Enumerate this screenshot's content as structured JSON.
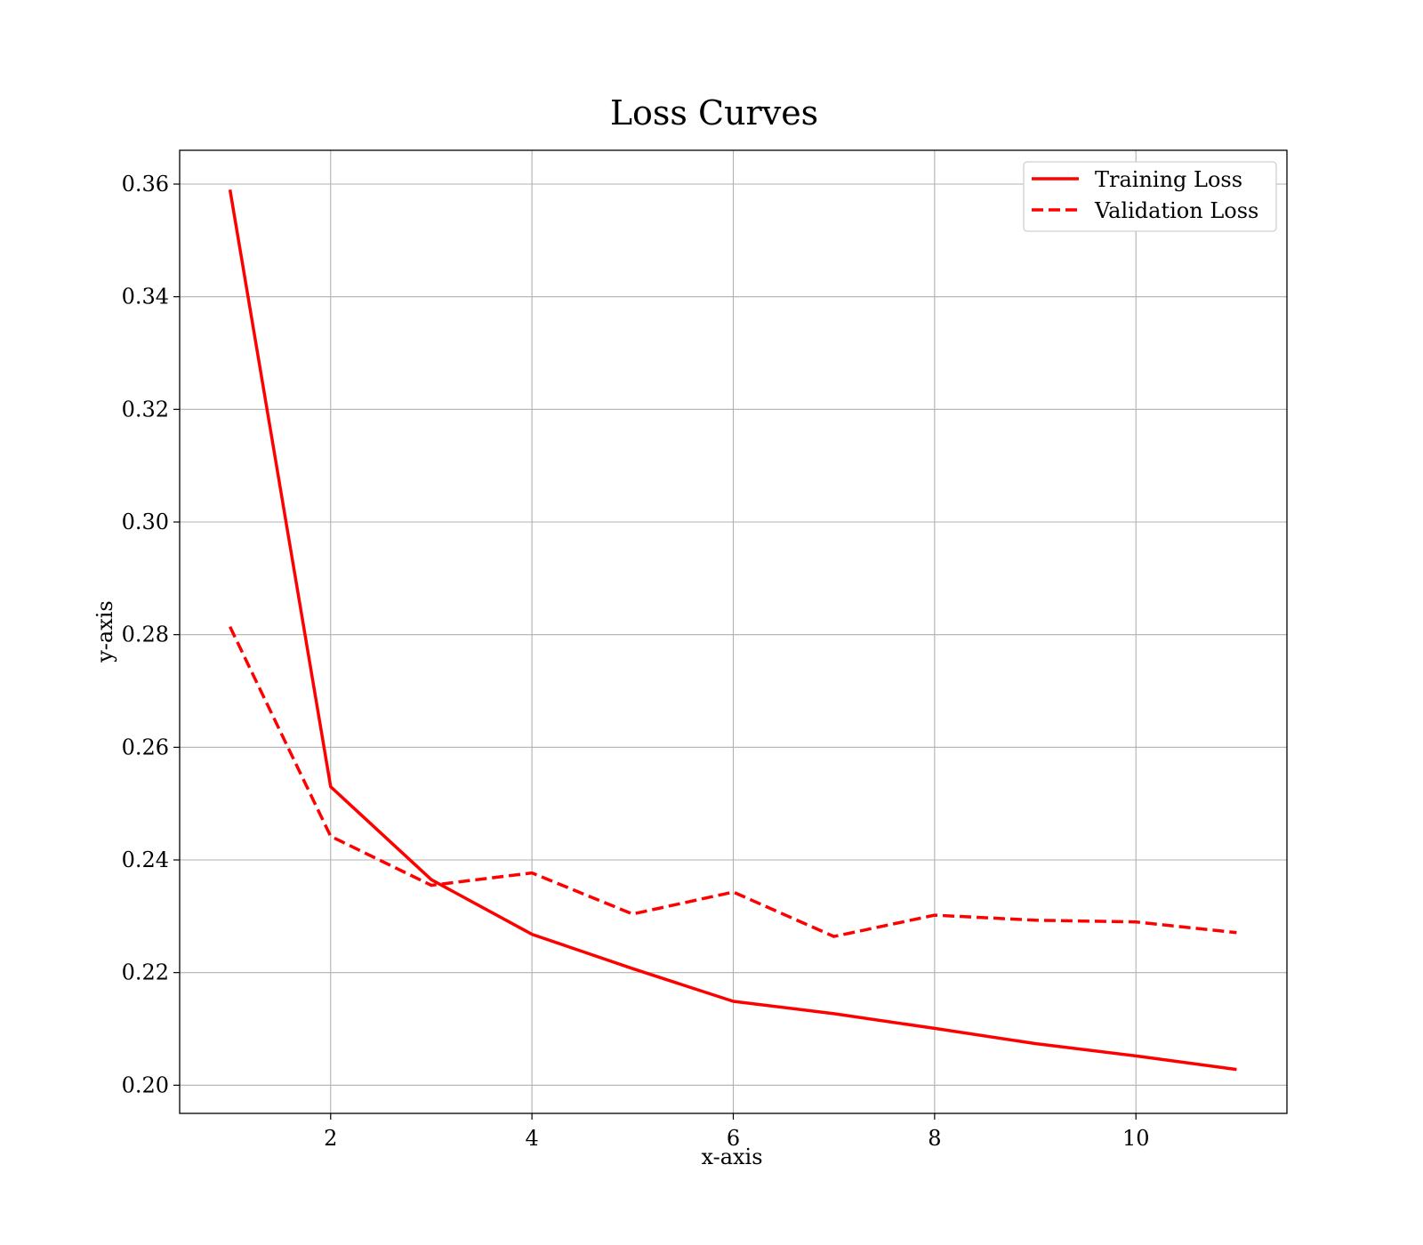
{
  "chart_data": {
    "type": "line",
    "title": "Loss Curves",
    "xlabel": "x-axis",
    "ylabel": "y-axis",
    "xlim": [
      0.5,
      11.5
    ],
    "ylim": [
      0.195,
      0.366
    ],
    "xticks": [
      2,
      4,
      6,
      8,
      10
    ],
    "yticks": [
      0.2,
      0.22,
      0.24,
      0.26,
      0.28,
      0.3,
      0.32,
      0.34,
      0.36
    ],
    "grid": true,
    "legend_position": "top-right",
    "x": [
      1,
      2,
      3,
      4,
      5,
      6,
      7,
      8,
      9,
      10,
      11
    ],
    "series": [
      {
        "name": "Training Loss",
        "style": "solid",
        "color": "#ff0000",
        "values": [
          0.359,
          0.253,
          0.2365,
          0.2268,
          0.2207,
          0.2149,
          0.2127,
          0.2101,
          0.2074,
          0.2052,
          0.2028
        ]
      },
      {
        "name": "Validation Loss",
        "style": "dashed",
        "color": "#ff0000",
        "values": [
          0.2814,
          0.2442,
          0.2355,
          0.2377,
          0.2304,
          0.2343,
          0.2264,
          0.2302,
          0.2293,
          0.229,
          0.2271
        ]
      }
    ]
  }
}
